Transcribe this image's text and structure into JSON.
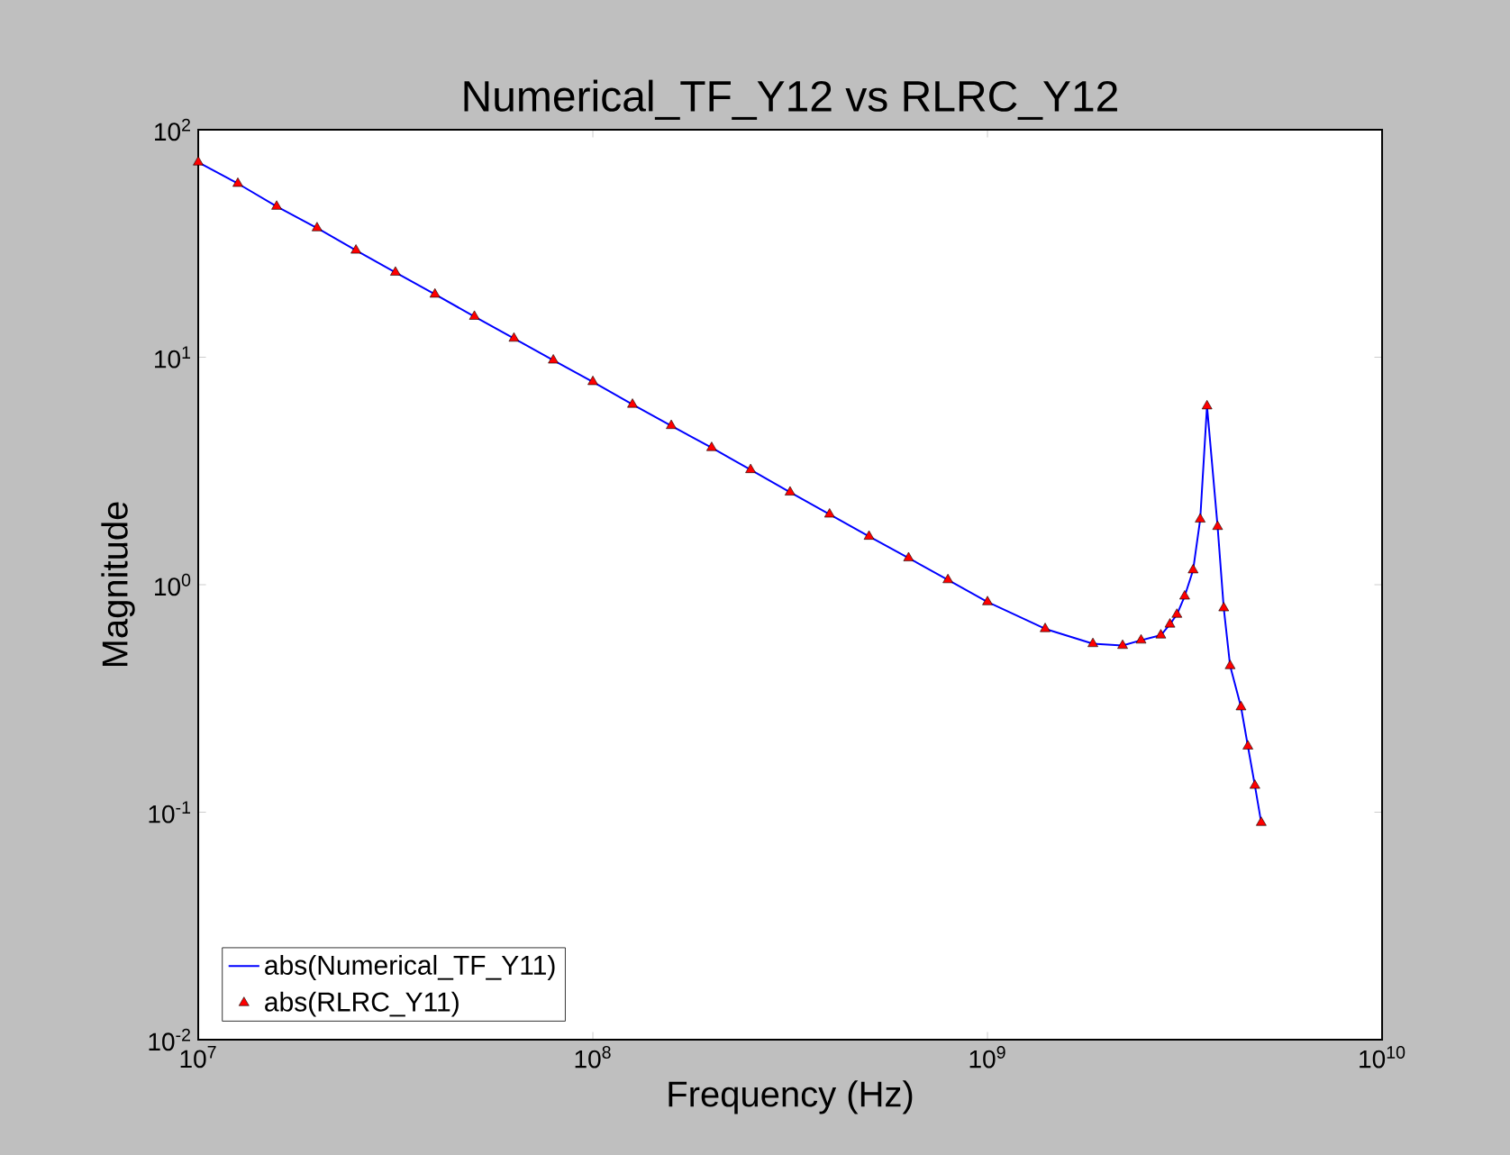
{
  "chart_data": {
    "type": "line",
    "title": "Numerical_TF_Y12 vs RLRC_Y12",
    "xlabel": "Frequency (Hz)",
    "ylabel": "Magnitude",
    "x": [
      10000000.0,
      12600000.0,
      15800000.0,
      20000000.0,
      25100000.0,
      31600000.0,
      39800000.0,
      50100000.0,
      63100000.0,
      79400000.0,
      100000000.0,
      126000000.0,
      158000000.0,
      200000000.0,
      251000000.0,
      316000000.0,
      398000000.0,
      501000000.0,
      631000000.0,
      794000000.0,
      1000000000.0,
      1400000000.0,
      1850000000.0,
      2200000000.0,
      2450000000.0,
      2750000000.0,
      2900000000.0,
      3020000000.0,
      3160000000.0,
      3320000000.0,
      3460000000.0,
      3600000000.0,
      3830000000.0,
      3970000000.0,
      4120000000.0,
      4390000000.0,
      4570000000.0,
      4760000000.0,
      4940000000.0
    ],
    "series": [
      {
        "name": "abs(Numerical_TF_Y11)",
        "color": "#0000ff",
        "marker": "none",
        "values": [
          72,
          58,
          46,
          37,
          29.5,
          23.6,
          18.9,
          15.1,
          12.1,
          9.7,
          7.8,
          6.2,
          5.0,
          4.0,
          3.2,
          2.55,
          2.04,
          1.63,
          1.31,
          1.05,
          0.84,
          0.64,
          0.55,
          0.54,
          0.57,
          0.6,
          0.67,
          0.74,
          0.89,
          1.16,
          1.94,
          6.1,
          1.8,
          0.79,
          0.44,
          0.29,
          0.195,
          0.131,
          0.09
        ]
      },
      {
        "name": "abs(RLRC_Y11)",
        "type": "scatter",
        "color": "#ff0000",
        "marker": "triangle",
        "values": [
          72,
          58,
          46,
          37,
          29.5,
          23.6,
          18.9,
          15.1,
          12.1,
          9.7,
          7.8,
          6.2,
          5.0,
          4.0,
          3.2,
          2.55,
          2.04,
          1.63,
          1.31,
          1.05,
          0.84,
          0.64,
          0.55,
          0.54,
          0.57,
          0.6,
          0.67,
          0.74,
          0.89,
          1.16,
          1.94,
          6.1,
          1.8,
          0.79,
          0.44,
          0.29,
          0.195,
          0.131,
          0.09
        ]
      }
    ],
    "xlim": [
      10000000.0,
      10000000000.0
    ],
    "ylim": [
      0.01,
      100
    ],
    "xticks": [
      {
        "value": 10000000.0,
        "label": "10$^{7}$"
      },
      {
        "value": 100000000.0,
        "label": "10$^{8}$"
      },
      {
        "value": 1000000000.0,
        "label": "10$^{9}$"
      },
      {
        "value": 10000000000.0,
        "label": "10$^{10}$"
      }
    ],
    "yticks": [
      {
        "value": 0.01,
        "label": "10$^{-2}$"
      },
      {
        "value": 0.1,
        "label": "10$^{-1}$"
      },
      {
        "value": 1,
        "label": "10$^{0}$"
      },
      {
        "value": 10,
        "label": "10$^{1}$"
      },
      {
        "value": 100,
        "label": "10$^{2}$"
      }
    ],
    "log": "xy",
    "legend": "bottom left"
  }
}
